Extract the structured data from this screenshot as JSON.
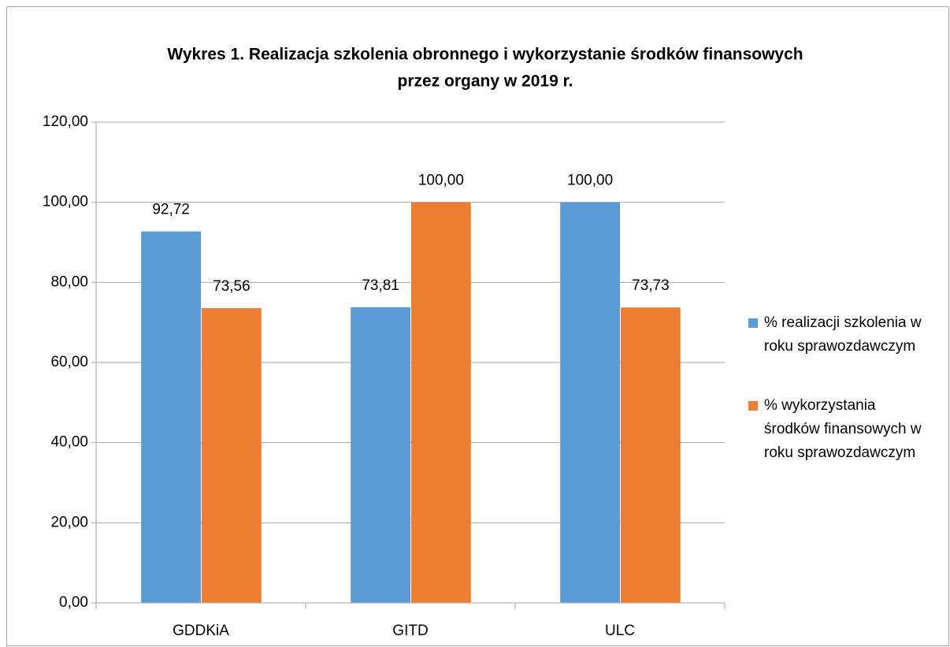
{
  "chart_data": {
    "type": "bar",
    "title": [
      "Wykres 1. Realizacja szkolenia obronnego i wykorzystanie środków finansowych",
      "przez organy w 2019 r."
    ],
    "categories": [
      "GDDKiA",
      "GITD",
      "ULC"
    ],
    "series": [
      {
        "name": "% realizacji szkolenia w roku sprawozdawczym",
        "color": "#5b9bd5",
        "values": [
          92.72,
          73.81,
          100
        ],
        "value_labels": [
          "92,72",
          "73,81",
          "100,00"
        ]
      },
      {
        "name": "% wykorzystania środków finansowych w roku sprawozdawczym",
        "color": "#ed7d31",
        "values": [
          73.56,
          100,
          73.73
        ],
        "value_labels": [
          "73,56",
          "100,00",
          "73,73"
        ]
      }
    ],
    "ylim": [
      0,
      120
    ],
    "yticks": [
      {
        "value": 0,
        "label": "0,00"
      },
      {
        "value": 20,
        "label": "20,00"
      },
      {
        "value": 40,
        "label": "40,00"
      },
      {
        "value": 60,
        "label": "60,00"
      },
      {
        "value": 80,
        "label": "80,00"
      },
      {
        "value": 100,
        "label": "100,00"
      },
      {
        "value": 120,
        "label": "120,00"
      }
    ],
    "grid": true,
    "legend": "right"
  }
}
